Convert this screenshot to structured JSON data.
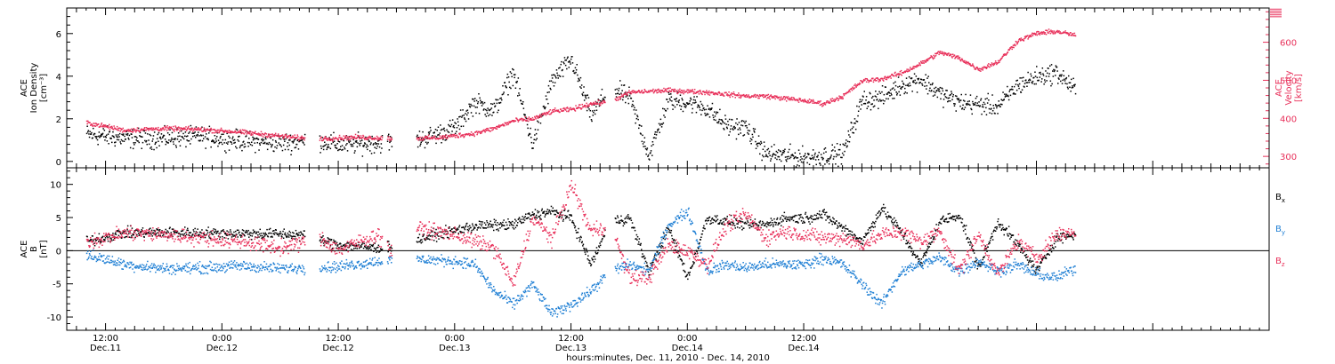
{
  "chart_data": [
    {
      "panel": "top",
      "type": "scatter",
      "left_axis": {
        "label_lines": [
          "ACE",
          "Ion Density"
        ],
        "unit": "[cm⁻³]",
        "ylim": [
          -0.3,
          7.2
        ],
        "ticks": [
          0,
          2,
          4,
          6
        ],
        "tick_labels": [
          "0",
          "2",
          "4",
          "6"
        ]
      },
      "right_axis": {
        "label_lines": [
          "ACE",
          "Velocity"
        ],
        "unit": "[km/s]",
        "ylim": [
          270,
          690
        ],
        "ticks": [
          300,
          400,
          500,
          600
        ],
        "tick_labels": [
          "300",
          "400",
          "500",
          "600"
        ],
        "color": "#e8305a"
      },
      "series": [
        {
          "axis": "left",
          "color": "#000000",
          "knots": [
            [
              -2,
              1.3
            ],
            [
              2,
              1.1
            ],
            [
              6,
              1.1
            ],
            [
              10,
              1.2
            ],
            [
              14,
              1.0
            ],
            [
              18,
              0.9
            ],
            [
              22,
              1.0
            ],
            [
              24,
              0.8
            ],
            [
              28,
              0.9
            ],
            [
              32,
              1.0
            ],
            [
              36,
              1.6
            ],
            [
              38,
              2.8
            ],
            [
              40,
              2.4
            ],
            [
              42,
              4.2
            ],
            [
              44,
              0.8
            ],
            [
              46,
              3.8
            ],
            [
              48,
              4.8
            ],
            [
              50,
              2.2
            ],
            [
              52,
              3.5
            ],
            [
              54,
              3.0
            ],
            [
              56,
              0.3
            ],
            [
              58,
              2.9
            ],
            [
              60,
              2.8
            ],
            [
              62,
              2.5
            ],
            [
              64,
              1.7
            ],
            [
              66,
              1.6
            ],
            [
              68,
              0.4
            ],
            [
              72,
              0.2
            ],
            [
              76,
              0.4
            ],
            [
              78,
              2.9
            ],
            [
              80,
              3.0
            ],
            [
              82,
              3.6
            ],
            [
              84,
              3.9
            ],
            [
              86,
              3.2
            ],
            [
              88,
              2.8
            ],
            [
              90,
              2.7
            ],
            [
              92,
              2.6
            ],
            [
              94,
              3.6
            ],
            [
              96,
              4.0
            ],
            [
              98,
              4.2
            ],
            [
              100,
              3.4
            ]
          ],
          "gaps": [
            [
              20.5,
              22
            ],
            [
              28.5,
              29
            ],
            [
              29.5,
              32
            ],
            [
              51.5,
              52.5
            ]
          ],
          "spread": 0.45
        },
        {
          "axis": "right",
          "color": "#e8305a",
          "knots": [
            [
              -2,
              390
            ],
            [
              2,
              370
            ],
            [
              6,
              375
            ],
            [
              10,
              372
            ],
            [
              14,
              365
            ],
            [
              18,
              355
            ],
            [
              20,
              350
            ],
            [
              22,
              348
            ],
            [
              26,
              352
            ],
            [
              30,
              348
            ],
            [
              34,
              350
            ],
            [
              38,
              362
            ],
            [
              40,
              375
            ],
            [
              42,
              395
            ],
            [
              44,
              400
            ],
            [
              46,
              420
            ],
            [
              48,
              425
            ],
            [
              50,
              440
            ],
            [
              52,
              445
            ],
            [
              54,
              470
            ],
            [
              58,
              475
            ],
            [
              62,
              470
            ],
            [
              66,
              460
            ],
            [
              68,
              460
            ],
            [
              72,
              448
            ],
            [
              74,
              440
            ],
            [
              76,
              460
            ],
            [
              78,
              500
            ],
            [
              80,
              505
            ],
            [
              82,
              520
            ],
            [
              84,
              545
            ],
            [
              86,
              575
            ],
            [
              88,
              560
            ],
            [
              90,
              530
            ],
            [
              92,
              550
            ],
            [
              94,
              605
            ],
            [
              96,
              625
            ],
            [
              98,
              630
            ],
            [
              100,
              620
            ]
          ],
          "gaps": [
            [
              20.5,
              22
            ],
            [
              28.5,
              29
            ],
            [
              29.5,
              32
            ],
            [
              51.5,
              52.5
            ]
          ],
          "spread": 6
        }
      ]
    },
    {
      "panel": "bottom",
      "type": "scatter",
      "left_axis": {
        "label_lines": [
          "ACE",
          "B"
        ],
        "unit": "[nT]",
        "ylim": [
          -12,
          12.5
        ],
        "ticks": [
          -10,
          -5,
          0,
          5,
          10
        ],
        "tick_labels": [
          "-10",
          "-5",
          "0",
          "5",
          "10"
        ]
      },
      "zero_line": true,
      "series": [
        {
          "name": "Bx",
          "color": "#000000",
          "knots": [
            [
              -2,
              1.5
            ],
            [
              2,
              2.8
            ],
            [
              8,
              2.8
            ],
            [
              14,
              2.7
            ],
            [
              18,
              2.6
            ],
            [
              20,
              2.5
            ],
            [
              24,
              1.0
            ],
            [
              28,
              0.5
            ],
            [
              30,
              0.8
            ],
            [
              34,
              2.5
            ],
            [
              38,
              3.8
            ],
            [
              42,
              4.0
            ],
            [
              44,
              5.5
            ],
            [
              46,
              6.0
            ],
            [
              48,
              5.0
            ],
            [
              50,
              -2.0
            ],
            [
              52,
              4.5
            ],
            [
              54,
              5.0
            ],
            [
              56,
              -3.0
            ],
            [
              58,
              3.5
            ],
            [
              60,
              -4.0
            ],
            [
              62,
              5.0
            ],
            [
              64,
              4.5
            ],
            [
              66,
              4.0
            ],
            [
              68,
              4.0
            ],
            [
              70,
              5.0
            ],
            [
              72,
              5.0
            ],
            [
              74,
              5.5
            ],
            [
              76,
              3.5
            ],
            [
              78,
              1.5
            ],
            [
              80,
              6.5
            ],
            [
              82,
              3.0
            ],
            [
              84,
              -2.0
            ],
            [
              86,
              4.5
            ],
            [
              88,
              5.5
            ],
            [
              90,
              -2.5
            ],
            [
              92,
              4.5
            ],
            [
              94,
              1.0
            ],
            [
              96,
              -3.0
            ],
            [
              98,
              2.0
            ],
            [
              100,
              2.5
            ]
          ],
          "gaps": [
            [
              20.5,
              22
            ],
            [
              28.5,
              29
            ],
            [
              29.5,
              32
            ],
            [
              51.5,
              52.5
            ]
          ],
          "spread": 0.8
        },
        {
          "name": "By",
          "color": "#1f7fd4",
          "knots": [
            [
              -2,
              -0.5
            ],
            [
              2,
              -2.0
            ],
            [
              6,
              -2.6
            ],
            [
              10,
              -2.5
            ],
            [
              14,
              -2.2
            ],
            [
              18,
              -2.6
            ],
            [
              20,
              -2.5
            ],
            [
              24,
              -2.3
            ],
            [
              28,
              -1.5
            ],
            [
              32,
              -1.2
            ],
            [
              36,
              -1.5
            ],
            [
              38,
              -2.0
            ],
            [
              40,
              -6.0
            ],
            [
              42,
              -8.0
            ],
            [
              44,
              -5.0
            ],
            [
              46,
              -9.5
            ],
            [
              48,
              -8.0
            ],
            [
              50,
              -6.0
            ],
            [
              52,
              -3.0
            ],
            [
              54,
              -2.0
            ],
            [
              56,
              -3.0
            ],
            [
              58,
              4.0
            ],
            [
              60,
              6.0
            ],
            [
              62,
              -3.0
            ],
            [
              64,
              -2.0
            ],
            [
              66,
              -2.5
            ],
            [
              68,
              -2.0
            ],
            [
              70,
              -2.0
            ],
            [
              72,
              -2.0
            ],
            [
              74,
              -1.0
            ],
            [
              76,
              -2.0
            ],
            [
              78,
              -5.0
            ],
            [
              80,
              -8.0
            ],
            [
              82,
              -3.0
            ],
            [
              84,
              -2.0
            ],
            [
              86,
              -1.0
            ],
            [
              88,
              -3.0
            ],
            [
              90,
              -1.5
            ],
            [
              92,
              -3.0
            ],
            [
              94,
              -2.0
            ],
            [
              96,
              -3.5
            ],
            [
              98,
              -4.0
            ],
            [
              100,
              -2.5
            ]
          ],
          "gaps": [
            [
              20.5,
              22
            ],
            [
              28.5,
              29
            ],
            [
              29.5,
              32
            ],
            [
              51.5,
              52.5
            ]
          ],
          "spread": 0.8
        },
        {
          "name": "Bz",
          "color": "#e8305a",
          "knots": [
            [
              -2,
              1.5
            ],
            [
              0,
              2.0
            ],
            [
              2,
              2.8
            ],
            [
              6,
              2.5
            ],
            [
              10,
              2.0
            ],
            [
              14,
              1.5
            ],
            [
              18,
              0.5
            ],
            [
              22,
              2.0
            ],
            [
              24,
              0.2
            ],
            [
              28,
              2.5
            ],
            [
              30,
              -1.0
            ],
            [
              32,
              3.5
            ],
            [
              34,
              3.0
            ],
            [
              36,
              2.5
            ],
            [
              38,
              1.5
            ],
            [
              40,
              0.5
            ],
            [
              42,
              -5.0
            ],
            [
              44,
              5.0
            ],
            [
              46,
              2.0
            ],
            [
              48,
              10.0
            ],
            [
              50,
              3.0
            ],
            [
              52,
              4.0
            ],
            [
              54,
              -4.0
            ],
            [
              56,
              -4.0
            ],
            [
              58,
              1.0
            ],
            [
              60,
              0.0
            ],
            [
              62,
              -2.0
            ],
            [
              64,
              4.0
            ],
            [
              66,
              5.5
            ],
            [
              68,
              2.0
            ],
            [
              70,
              3.0
            ],
            [
              72,
              2.5
            ],
            [
              74,
              2.0
            ],
            [
              76,
              2.0
            ],
            [
              78,
              1.0
            ],
            [
              80,
              2.5
            ],
            [
              82,
              3.0
            ],
            [
              84,
              1.5
            ],
            [
              86,
              3.0
            ],
            [
              88,
              -3.0
            ],
            [
              90,
              2.5
            ],
            [
              92,
              -3.5
            ],
            [
              94,
              1.5
            ],
            [
              96,
              -1.0
            ],
            [
              98,
              2.5
            ],
            [
              100,
              3.0
            ]
          ],
          "gaps": [
            [
              20.5,
              22
            ],
            [
              28.5,
              29
            ],
            [
              29.5,
              32
            ],
            [
              51.5,
              52.5
            ]
          ],
          "spread": 1.1
        }
      ],
      "legend_placement": "right",
      "legend": [
        {
          "main": "B",
          "sub": "x",
          "color": "#000000"
        },
        {
          "main": "B",
          "sub": "y",
          "color": "#1f7fd4"
        },
        {
          "main": "B",
          "sub": "z",
          "color": "#e8305a"
        }
      ]
    }
  ],
  "x_axis": {
    "xlabel": "hours:minutes, Dec. 11, 2010 - Dec. 14, 2010",
    "xlim_hours": [
      -4,
      120
    ],
    "ticks": [
      {
        "hour": 0,
        "time": "12:00",
        "date": "Dec.11"
      },
      {
        "hour": 12,
        "time": "0:00",
        "date": "Dec.12"
      },
      {
        "hour": 24,
        "time": "12:00",
        "date": "Dec.12"
      },
      {
        "hour": 36,
        "time": "0:00",
        "date": "Dec.13"
      },
      {
        "hour": 48,
        "time": "12:00",
        "date": "Dec.13"
      },
      {
        "hour": 60,
        "time": "0:00",
        "date": "Dec.14"
      },
      {
        "hour": 72,
        "time": "12:00",
        "date": "Dec.14"
      }
    ]
  }
}
